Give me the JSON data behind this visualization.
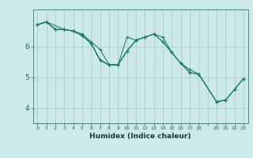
{
  "title": "",
  "xlabel": "Humidex (Indice chaleur)",
  "bg_color": "#cce8e8",
  "grid_color": "#aacccc",
  "line_color": "#1a7a6e",
  "xlim": [
    -0.5,
    23.5
  ],
  "ylim": [
    3.5,
    7.2
  ],
  "yticks": [
    4,
    5,
    6
  ],
  "xtick_labels": [
    "0",
    "1",
    "2",
    "3",
    "4",
    "5",
    "6",
    "7",
    "8",
    "9",
    "10",
    "11",
    "12",
    "13",
    "14",
    "15",
    "16",
    "17",
    "18",
    "",
    "20",
    "21",
    "22",
    "23"
  ],
  "xtick_pos": [
    0,
    1,
    2,
    3,
    4,
    5,
    6,
    7,
    8,
    9,
    10,
    11,
    12,
    13,
    14,
    15,
    16,
    17,
    18,
    19,
    20,
    21,
    22,
    23
  ],
  "lines": [
    {
      "x": [
        0,
        1,
        2,
        3,
        4,
        5,
        6,
        7,
        8,
        9,
        10,
        11,
        12,
        13,
        14,
        15,
        16,
        17,
        18,
        20,
        21,
        22,
        23
      ],
      "y": [
        6.7,
        6.8,
        6.55,
        6.55,
        6.5,
        6.4,
        6.15,
        5.9,
        5.4,
        5.4,
        6.3,
        6.2,
        6.3,
        6.4,
        6.3,
        5.8,
        5.45,
        5.25,
        5.1,
        4.2,
        4.25,
        4.6,
        4.95
      ]
    },
    {
      "x": [
        0,
        1,
        2,
        3,
        4,
        5,
        6,
        7,
        8,
        9,
        10,
        11,
        12,
        13,
        14,
        15,
        16,
        17,
        18,
        20,
        21,
        22,
        23
      ],
      "y": [
        6.7,
        6.8,
        6.55,
        6.55,
        6.5,
        6.35,
        6.1,
        5.55,
        5.4,
        5.4,
        5.85,
        6.2,
        6.3,
        6.4,
        6.15,
        5.8,
        5.45,
        5.15,
        5.1,
        4.2,
        4.25,
        4.6,
        4.95
      ]
    },
    {
      "x": [
        0,
        1,
        2,
        3,
        4,
        5,
        6,
        7,
        8,
        9,
        10,
        11
      ],
      "y": [
        6.7,
        6.8,
        6.55,
        6.55,
        6.5,
        6.35,
        6.1,
        5.55,
        5.4,
        5.4,
        5.85,
        6.2
      ]
    },
    {
      "x": [
        0,
        1,
        3,
        4,
        5,
        6,
        7,
        8,
        9,
        10,
        11,
        12,
        13,
        14,
        15,
        16,
        17,
        18,
        20,
        21,
        22,
        23
      ],
      "y": [
        6.7,
        6.8,
        6.55,
        6.5,
        6.35,
        6.1,
        5.55,
        5.4,
        5.4,
        5.85,
        6.2,
        6.3,
        6.4,
        6.15,
        5.8,
        5.45,
        5.15,
        5.1,
        4.2,
        4.25,
        4.6,
        4.95
      ]
    }
  ]
}
